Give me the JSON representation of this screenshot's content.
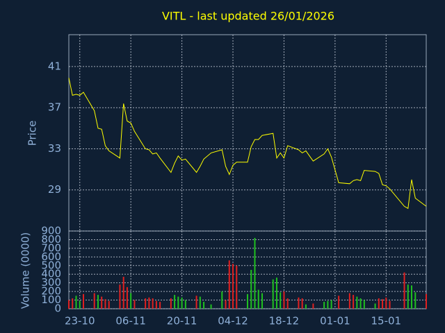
{
  "chart_data": [
    {
      "type": "line",
      "title": "VITL - last updated 26/01/2026",
      "y_label": "Price",
      "color": "#ffff00",
      "grid": true,
      "x": [
        "20-10",
        "21-10",
        "22-10",
        "23-10",
        "24-10",
        "27-10",
        "28-10",
        "29-10",
        "30-10",
        "31-10",
        "03-11",
        "04-11",
        "05-11",
        "06-11",
        "07-11",
        "10-11",
        "11-11",
        "12-11",
        "13-11",
        "14-11",
        "17-11",
        "18-11",
        "19-11",
        "20-11",
        "21-11",
        "24-11",
        "25-11",
        "26-11",
        "28-11",
        "01-12",
        "02-12",
        "03-12",
        "04-12",
        "05-12",
        "08-12",
        "09-12",
        "10-12",
        "11-12",
        "12-12",
        "15-12",
        "16-12",
        "17-12",
        "18-12",
        "19-12",
        "22-12",
        "23-12",
        "24-12",
        "26-12",
        "29-12",
        "30-12",
        "31-12",
        "02-01",
        "05-01",
        "06-01",
        "07-01",
        "08-01",
        "09-01",
        "12-01",
        "13-01",
        "14-01",
        "15-01",
        "16-01",
        "20-01",
        "21-01",
        "22-01",
        "23-01",
        "26-01"
      ],
      "values": [
        39.9,
        38.2,
        38.3,
        38.2,
        38.5,
        36.7,
        35.0,
        34.9,
        33.3,
        32.8,
        32.1,
        37.4,
        35.7,
        35.5,
        34.7,
        33.0,
        32.9,
        32.5,
        32.6,
        32.1,
        30.7,
        31.6,
        32.3,
        31.9,
        32.0,
        30.7,
        31.3,
        32.0,
        32.6,
        32.9,
        31.3,
        30.5,
        31.4,
        31.7,
        31.7,
        33.2,
        33.9,
        33.9,
        34.3,
        34.5,
        32.1,
        32.6,
        32.1,
        33.3,
        32.9,
        32.6,
        32.8,
        31.8,
        32.5,
        33.0,
        32.2,
        29.7,
        29.6,
        29.9,
        30.0,
        29.9,
        30.9,
        30.8,
        30.6,
        29.5,
        29.4,
        29.1,
        27.4,
        27.2,
        30.0,
        28.2,
        27.4
      ],
      "xlim": [
        "20-10",
        "26-01"
      ],
      "ylim": [
        25.0,
        44.1
      ],
      "yticks": [
        29,
        33,
        37,
        41
      ]
    },
    {
      "type": "bar",
      "y_label": "Volume (0000)",
      "grid": true,
      "x": [
        "20-10",
        "21-10",
        "22-10",
        "23-10",
        "24-10",
        "27-10",
        "28-10",
        "29-10",
        "30-10",
        "31-10",
        "03-11",
        "04-11",
        "05-11",
        "06-11",
        "07-11",
        "10-11",
        "11-11",
        "12-11",
        "13-11",
        "14-11",
        "17-11",
        "18-11",
        "19-11",
        "20-11",
        "21-11",
        "24-11",
        "25-11",
        "26-11",
        "28-11",
        "01-12",
        "02-12",
        "03-12",
        "04-12",
        "05-12",
        "08-12",
        "09-12",
        "10-12",
        "11-12",
        "12-12",
        "15-12",
        "16-12",
        "17-12",
        "18-12",
        "19-12",
        "22-12",
        "23-12",
        "24-12",
        "26-12",
        "29-12",
        "30-12",
        "31-12",
        "02-01",
        "05-01",
        "06-01",
        "07-01",
        "08-01",
        "09-01",
        "12-01",
        "13-01",
        "14-01",
        "15-01",
        "16-01",
        "20-01",
        "21-01",
        "22-01",
        "23-01",
        "26-01"
      ],
      "values": [
        100,
        120,
        150,
        90,
        170,
        180,
        160,
        140,
        110,
        90,
        280,
        370,
        250,
        180,
        100,
        120,
        130,
        120,
        90,
        80,
        120,
        160,
        140,
        130,
        100,
        150,
        140,
        80,
        50,
        200,
        100,
        560,
        520,
        500,
        170,
        450,
        820,
        220,
        180,
        340,
        360,
        190,
        200,
        120,
        130,
        120,
        50,
        60,
        80,
        90,
        100,
        150,
        180,
        160,
        140,
        120,
        100,
        60,
        120,
        110,
        130,
        90,
        420,
        280,
        270,
        190,
        170
      ],
      "colors": [
        "#e02020",
        "#e02020",
        "#20c020",
        "#20c020",
        "#e02020",
        "#e02020",
        "#20c020",
        "#e02020",
        "#e02020",
        "#e02020",
        "#e02020",
        "#e02020",
        "#e02020",
        "#20c020",
        "#e02020",
        "#e02020",
        "#e02020",
        "#e02020",
        "#e02020",
        "#e02020",
        "#e02020",
        "#20c020",
        "#20c020",
        "#20c020",
        "#20c020",
        "#e02020",
        "#20c020",
        "#20c020",
        "#20c020",
        "#20c020",
        "#e02020",
        "#e02020",
        "#e02020",
        "#e02020",
        "#20c020",
        "#20c020",
        "#20c020",
        "#20c020",
        "#20c020",
        "#20c020",
        "#20c020",
        "#20c020",
        "#e02020",
        "#e02020",
        "#e02020",
        "#e02020",
        "#20c020",
        "#e02020",
        "#20c020",
        "#20c020",
        "#20c020",
        "#e02020",
        "#e02020",
        "#e02020",
        "#20c020",
        "#20c020",
        "#20c020",
        "#20c020",
        "#e02020",
        "#e02020",
        "#e02020",
        "#e02020",
        "#e02020",
        "#20c020",
        "#20c020",
        "#20c020",
        "#e02020"
      ],
      "xlim": [
        "20-10",
        "26-01"
      ],
      "xticks": [
        "23-10",
        "06-11",
        "20-11",
        "04-12",
        "18-12",
        "01-01",
        "15-01"
      ],
      "ylim": [
        0,
        900
      ],
      "yticks": [
        0,
        100,
        200,
        300,
        400,
        500,
        600,
        700,
        800,
        900
      ]
    }
  ]
}
